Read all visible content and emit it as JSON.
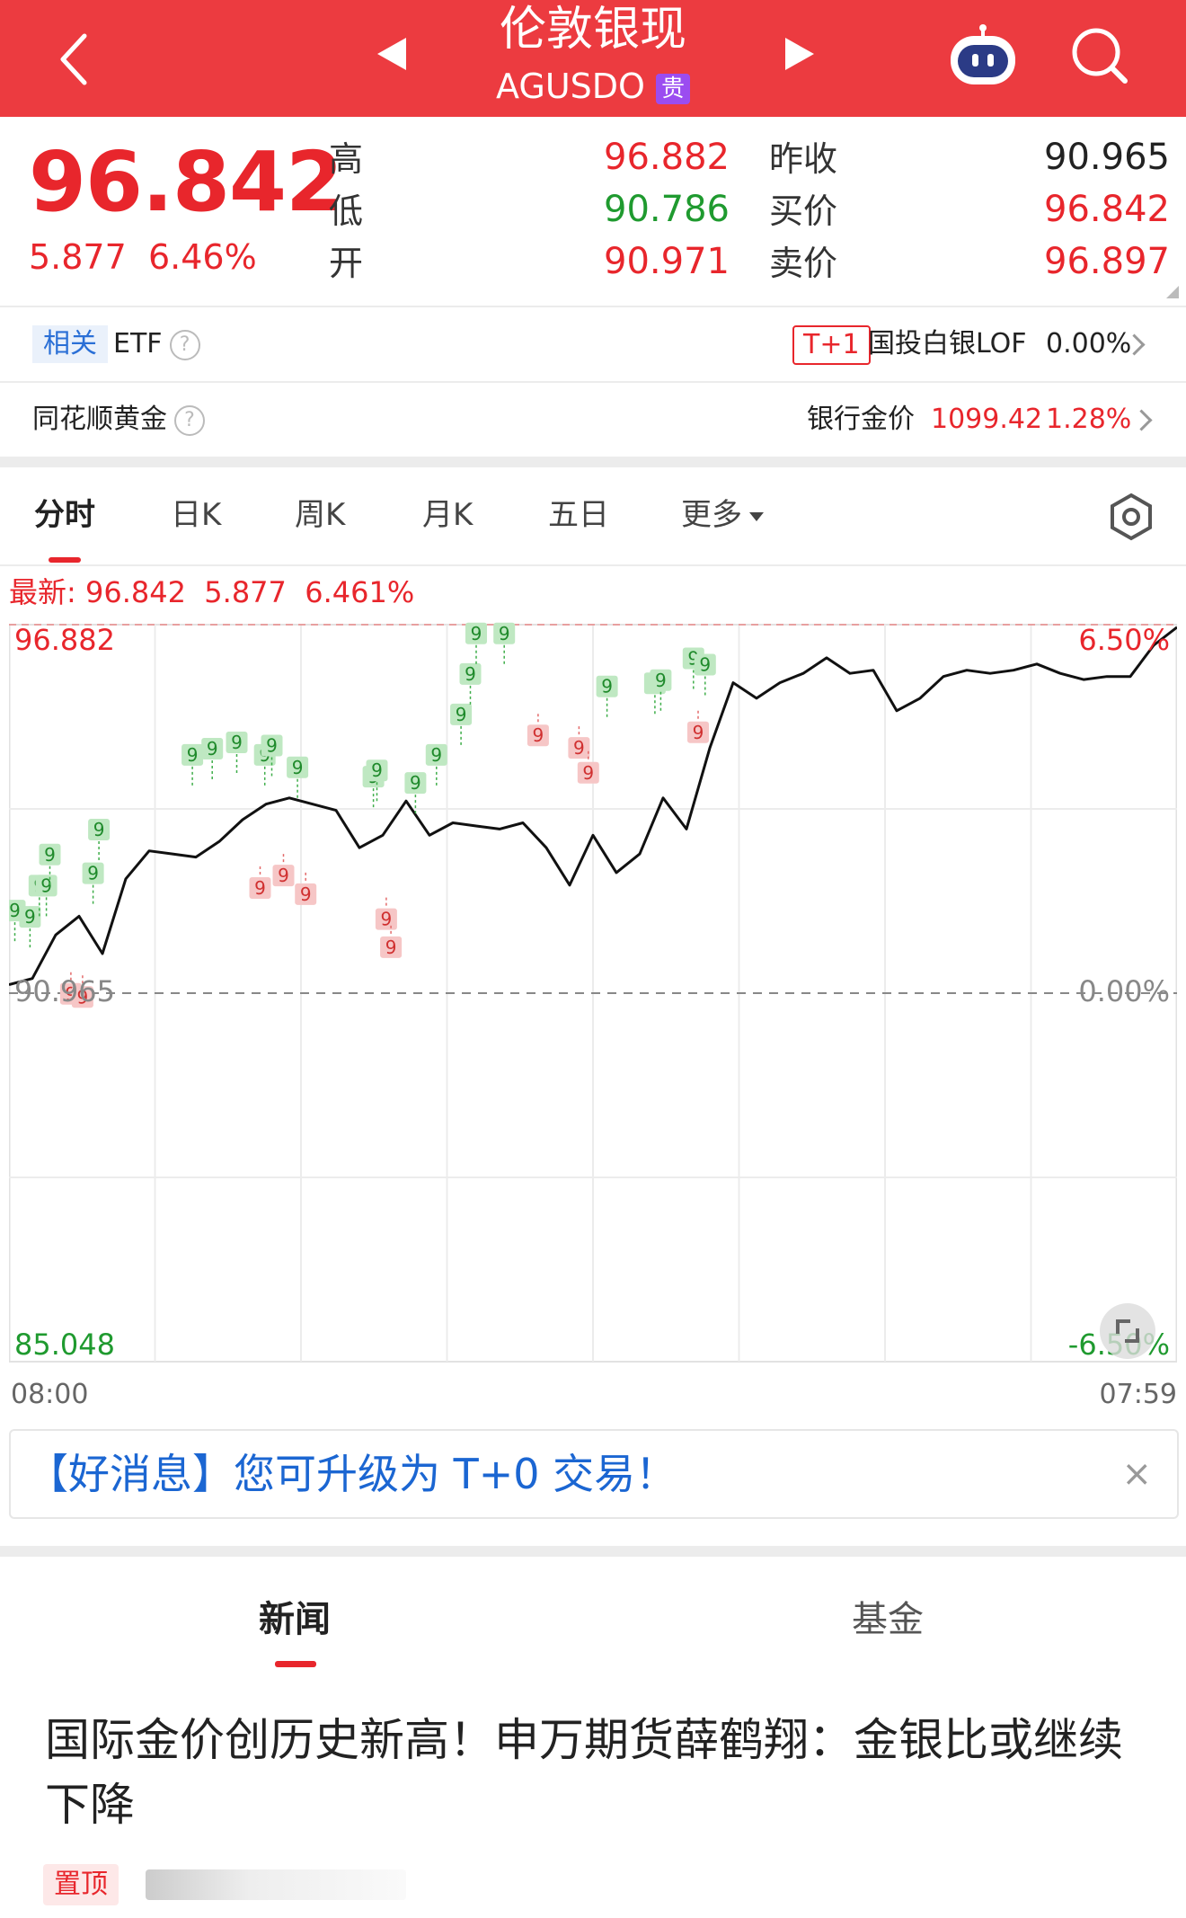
{
  "header": {
    "title": "伦敦银现",
    "code": "AGUSDO",
    "badge": "贵"
  },
  "quote": {
    "price": "96.842",
    "change": "5.877",
    "change_pct": "6.46%",
    "stats": [
      {
        "label": "高",
        "value": "96.882",
        "color": "#e8262c"
      },
      {
        "label": "低",
        "value": "90.786",
        "color": "#1f9a2f"
      },
      {
        "label": "开",
        "value": "90.971",
        "color": "#e8262c"
      }
    ],
    "stats2": [
      {
        "label": "昨收",
        "value": "90.965",
        "color": "#222222"
      },
      {
        "label": "买价",
        "value": "96.842",
        "color": "#e8262c"
      },
      {
        "label": "卖价",
        "value": "96.897",
        "color": "#e8262c"
      }
    ]
  },
  "related": {
    "tag": "相关",
    "etf": "ETF",
    "t1_badge": "T+1",
    "fund_name": "国投白银LOF",
    "fund_pct": "0.00%"
  },
  "gold_row": {
    "label": "同花顺黄金",
    "bank_label": "银行金价",
    "bank_price": "1099.42",
    "bank_pct": "1.28%"
  },
  "chart_tabs": [
    "分时",
    "日K",
    "周K",
    "月K",
    "五日",
    "更多"
  ],
  "chart_info": {
    "latest_label": "最新:",
    "latest": "96.842",
    "change": "5.877",
    "change_pct": "6.461%"
  },
  "chart_data": {
    "type": "line",
    "y_max_label": "96.882",
    "y_mid_label": "90.965",
    "y_min_label": "85.048",
    "pct_max_label": "6.50%",
    "pct_mid_label": "0.00%",
    "pct_min_label": "-6.50%",
    "x_start": "08:00",
    "x_end": "07:59",
    "ylim": [
      85.048,
      96.882
    ],
    "baseline": 90.965,
    "x": [
      0,
      2,
      4,
      6,
      8,
      10,
      12,
      14,
      16,
      18,
      20,
      22,
      24,
      26,
      28,
      30,
      32,
      34,
      36,
      38,
      40,
      42,
      44,
      46,
      48,
      50,
      52,
      54,
      56,
      58,
      60,
      62,
      64,
      66,
      68,
      70,
      72,
      74,
      76,
      78,
      80,
      82,
      84,
      86,
      88,
      90,
      92,
      94,
      96,
      98,
      100
    ],
    "y": [
      91.1,
      91.2,
      91.9,
      92.2,
      91.6,
      92.8,
      93.25,
      93.2,
      93.15,
      93.4,
      93.75,
      94.0,
      94.1,
      94.0,
      93.9,
      93.3,
      93.5,
      94.05,
      93.5,
      93.7,
      93.65,
      93.6,
      93.7,
      93.3,
      92.7,
      93.5,
      92.9,
      93.2,
      94.1,
      93.6,
      94.9,
      95.95,
      95.7,
      95.95,
      96.1,
      96.35,
      96.1,
      96.15,
      95.5,
      95.7,
      96.05,
      96.15,
      96.1,
      96.15,
      96.25,
      96.1,
      96.0,
      96.05,
      96.05,
      96.55,
      96.84
    ],
    "markers": [
      {
        "x": 0.5,
        "y": 91.8,
        "label": "9",
        "color": "green"
      },
      {
        "x": 1.8,
        "y": 91.7,
        "label": "9",
        "color": "green"
      },
      {
        "x": 2.6,
        "y": 92.2,
        "label": "9",
        "color": "green"
      },
      {
        "x": 3.2,
        "y": 92.2,
        "label": "9",
        "color": "green"
      },
      {
        "x": 3.5,
        "y": 92.7,
        "label": "9",
        "color": "green"
      },
      {
        "x": 5.3,
        "y": 91.3,
        "label": "9",
        "color": "red"
      },
      {
        "x": 6.3,
        "y": 91.25,
        "label": "9",
        "color": "red"
      },
      {
        "x": 7.2,
        "y": 92.4,
        "label": "9",
        "color": "green"
      },
      {
        "x": 7.7,
        "y": 93.1,
        "label": "9",
        "color": "green"
      },
      {
        "x": 15.7,
        "y": 94.3,
        "label": "9",
        "color": "green"
      },
      {
        "x": 17.4,
        "y": 94.4,
        "label": "9",
        "color": "green"
      },
      {
        "x": 19.5,
        "y": 94.5,
        "label": "9",
        "color": "green"
      },
      {
        "x": 21.5,
        "y": 93.0,
        "label": "9",
        "color": "red"
      },
      {
        "x": 21.9,
        "y": 94.3,
        "label": "9",
        "color": "green"
      },
      {
        "x": 22.5,
        "y": 94.45,
        "label": "9",
        "color": "green"
      },
      {
        "x": 23.5,
        "y": 93.2,
        "label": "9",
        "color": "red"
      },
      {
        "x": 24.7,
        "y": 94.1,
        "label": "9",
        "color": "green"
      },
      {
        "x": 25.4,
        "y": 92.9,
        "label": "9",
        "color": "red"
      },
      {
        "x": 31.2,
        "y": 93.95,
        "label": "9",
        "color": "green"
      },
      {
        "x": 31.5,
        "y": 94.05,
        "label": "9",
        "color": "green"
      },
      {
        "x": 32.3,
        "y": 92.5,
        "label": "9",
        "color": "red"
      },
      {
        "x": 32.7,
        "y": 92.05,
        "label": "9",
        "color": "red"
      },
      {
        "x": 34.8,
        "y": 93.85,
        "label": "9",
        "color": "green"
      },
      {
        "x": 36.6,
        "y": 94.3,
        "label": "9",
        "color": "green"
      },
      {
        "x": 38.7,
        "y": 94.95,
        "label": "9",
        "color": "green"
      },
      {
        "x": 39.5,
        "y": 95.6,
        "label": "9",
        "color": "green"
      },
      {
        "x": 40.0,
        "y": 96.25,
        "label": "9",
        "color": "green"
      },
      {
        "x": 42.4,
        "y": 96.25,
        "label": "9",
        "color": "green"
      },
      {
        "x": 45.3,
        "y": 95.45,
        "label": "9",
        "color": "red"
      },
      {
        "x": 48.8,
        "y": 95.25,
        "label": "9",
        "color": "red"
      },
      {
        "x": 49.6,
        "y": 94.85,
        "label": "9",
        "color": "red"
      },
      {
        "x": 51.2,
        "y": 95.4,
        "label": "9",
        "color": "green"
      },
      {
        "x": 55.3,
        "y": 95.45,
        "label": "9",
        "color": "green"
      },
      {
        "x": 55.8,
        "y": 95.5,
        "label": "9",
        "color": "green"
      },
      {
        "x": 58.6,
        "y": 95.85,
        "label": "9",
        "color": "green"
      },
      {
        "x": 59.0,
        "y": 95.5,
        "label": "9",
        "color": "red"
      },
      {
        "x": 59.6,
        "y": 95.75,
        "label": "9",
        "color": "green"
      }
    ]
  },
  "banner": {
    "text": "【好消息】您可升级为 T+0 交易！",
    "close": "×"
  },
  "news_tabs": [
    "新闻",
    "基金"
  ],
  "headline": "国际金价创历史新高！申万期货薛鹤翔：金银比或继续下降",
  "pin_label": "置顶"
}
